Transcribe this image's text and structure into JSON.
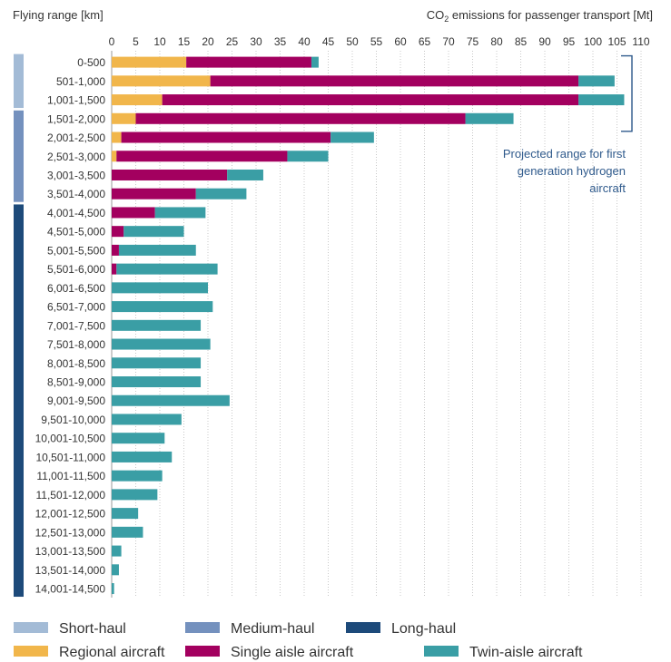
{
  "chart_data": {
    "type": "bar",
    "orientation": "horizontal",
    "stacked": true,
    "left_header": "Flying range [km]",
    "right_header": {
      "prefix": "CO",
      "subscript": "2",
      "suffix": " emissions for passenger transport [Mt]"
    },
    "xlim": [
      0,
      110
    ],
    "x_ticks": [
      0,
      5,
      10,
      15,
      20,
      25,
      30,
      35,
      40,
      45,
      50,
      55,
      60,
      65,
      70,
      75,
      80,
      85,
      90,
      95,
      100,
      105,
      110
    ],
    "grid": "vertical dotted",
    "categories": [
      "0-500",
      "501-1,000",
      "1,001-1,500",
      "1,501-2,000",
      "2,001-2,500",
      "2,501-3,000",
      "3,001-3,500",
      "3,501-4,000",
      "4,001-4,500",
      "4,501-5,000",
      "5,001-5,500",
      "5,501-6,000",
      "6,001-6,500",
      "6,501-7,000",
      "7,001-7,500",
      "7,501-8,000",
      "8,001-8,500",
      "8,501-9,000",
      "9,001-9,500",
      "9,501-10,000",
      "10,001-10,500",
      "10,501-11,000",
      "11,001-11,500",
      "11,501-12,000",
      "12,001-12,500",
      "12,501-13,000",
      "13,001-13,500",
      "13,501-14,000",
      "14,001-14,500"
    ],
    "series": [
      {
        "name": "Regional aircraft",
        "color": "#F1B64B",
        "values": [
          15.5,
          20.5,
          10.5,
          5,
          2,
          1,
          0,
          0,
          0,
          0,
          0,
          0,
          0,
          0,
          0,
          0,
          0,
          0,
          0,
          0,
          0,
          0,
          0,
          0,
          0,
          0,
          0,
          0,
          0
        ]
      },
      {
        "name": "Single aisle aircraft",
        "color": "#A3005F",
        "values": [
          26,
          76.5,
          86.5,
          68.5,
          43.5,
          35.5,
          24,
          17.5,
          9,
          2.5,
          1.5,
          1,
          0,
          0,
          0,
          0,
          0,
          0,
          0,
          0,
          0,
          0,
          0,
          0,
          0,
          0,
          0,
          0,
          0
        ]
      },
      {
        "name": "Twin-aisle aircraft",
        "color": "#3A9EA5",
        "values": [
          1.5,
          7.5,
          9.5,
          10,
          9,
          8.5,
          7.5,
          10.5,
          10.5,
          12.5,
          16,
          21,
          20,
          21,
          18.5,
          20.5,
          18.5,
          18.5,
          24.5,
          14.5,
          11,
          12.5,
          10.5,
          9.5,
          5.5,
          6.5,
          2,
          1.5,
          0.5
        ]
      }
    ],
    "range_groups": [
      {
        "name": "Short-haul",
        "color": "#A3BBD6",
        "from": 0,
        "to": 2
      },
      {
        "name": "Medium-haul",
        "color": "#7491BE",
        "from": 3,
        "to": 7
      },
      {
        "name": "Long-haul",
        "color": "#1D4A7A",
        "from": 8,
        "to": 28
      }
    ],
    "annotation": {
      "lines": [
        "Projected range for first",
        "generation hydrogen",
        "aircraft"
      ],
      "color": "#2F5A8C",
      "from": 0,
      "to": 3
    }
  }
}
